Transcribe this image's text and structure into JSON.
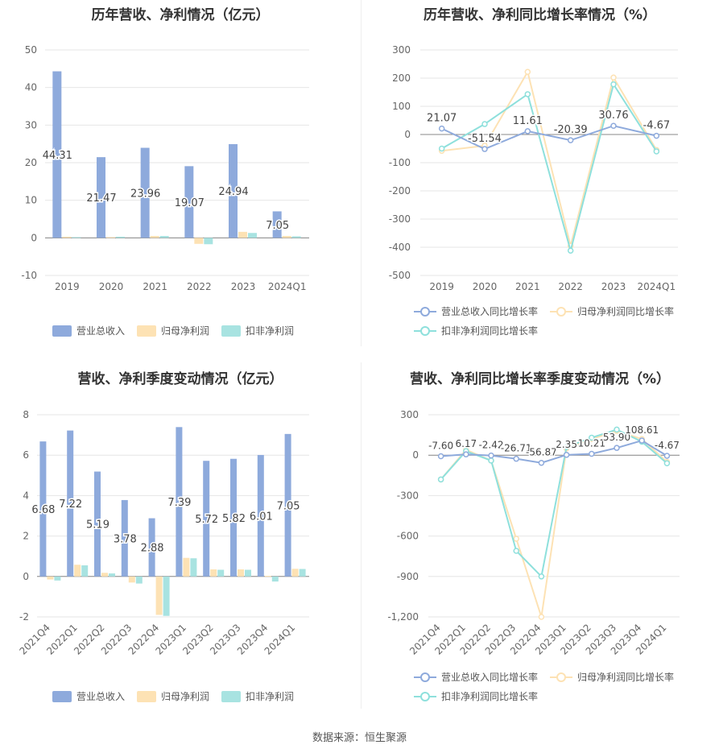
{
  "footer": "数据来源：恒生聚源",
  "colors": {
    "revenue": "#8eaadc",
    "netprofit": "#fde2b4",
    "deducted": "#a8e3e1",
    "revenue_line": "#8eaadc",
    "netprofit_line": "#fde2b4",
    "deducted_line": "#8ee0dc"
  },
  "chart_data": [
    {
      "type": "bar",
      "title": "历年营收、净利情况（亿元）",
      "categories": [
        "2019",
        "2020",
        "2021",
        "2022",
        "2023",
        "2024Q1"
      ],
      "ylim": [
        -10,
        50
      ],
      "yticks": [
        -10,
        0,
        10,
        20,
        30,
        40,
        50
      ],
      "series": [
        {
          "name": "营业总收入",
          "values": [
            44.31,
            21.47,
            23.96,
            19.07,
            24.94,
            7.05
          ],
          "labels": [
            "44.31",
            "21.47",
            "23.96",
            "19.07",
            "24.94",
            "7.05"
          ]
        },
        {
          "name": "归母净利润",
          "values": [
            0.3,
            0.2,
            0.5,
            -1.6,
            1.6,
            0.5
          ]
        },
        {
          "name": "扣非净利润",
          "values": [
            0.2,
            0.3,
            0.5,
            -1.7,
            1.3,
            0.4
          ]
        }
      ],
      "legend": "bottom"
    },
    {
      "type": "line",
      "title": "历年营收、净利同比增长率情况（%）",
      "categories": [
        "2019",
        "2020",
        "2021",
        "2022",
        "2023",
        "2024Q1"
      ],
      "ylim": [
        -500,
        300
      ],
      "yticks": [
        -500,
        -400,
        -300,
        -200,
        -100,
        0,
        100,
        200,
        300
      ],
      "series": [
        {
          "name": "营业总收入同比增长率",
          "values": [
            21.07,
            -51.54,
            11.61,
            -20.39,
            30.76,
            -4.67
          ],
          "labels": [
            "21.07",
            "-51.54",
            "11.61",
            "-20.39",
            "30.76",
            "-4.67"
          ]
        },
        {
          "name": "归母净利润同比增长率",
          "values": [
            -58,
            -40,
            222,
            -395,
            202,
            -55
          ]
        },
        {
          "name": "扣非净利润同比增长率",
          "values": [
            -50,
            37,
            143,
            -412,
            178,
            -60
          ]
        }
      ],
      "legend": "bottom"
    },
    {
      "type": "bar",
      "title": "营收、净利季度变动情况（亿元）",
      "categories": [
        "2021Q4",
        "2022Q1",
        "2022Q2",
        "2022Q3",
        "2022Q4",
        "2023Q1",
        "2023Q2",
        "2023Q3",
        "2023Q4",
        "2024Q1"
      ],
      "ylim": [
        -2,
        8
      ],
      "yticks": [
        -2,
        0,
        2,
        4,
        6,
        8
      ],
      "series": [
        {
          "name": "营业总收入",
          "values": [
            6.68,
            7.22,
            5.19,
            3.78,
            2.88,
            7.39,
            5.72,
            5.82,
            6.01,
            7.05
          ],
          "labels": [
            "6.68",
            "7.22",
            "5.19",
            "3.78",
            "2.88",
            "7.39",
            "5.72",
            "5.82",
            "6.01",
            "7.05"
          ]
        },
        {
          "name": "归母净利润",
          "values": [
            -0.15,
            0.58,
            0.18,
            -0.3,
            -1.9,
            0.92,
            0.35,
            0.35,
            0.03,
            0.38
          ]
        },
        {
          "name": "扣非净利润",
          "values": [
            -0.2,
            0.55,
            0.15,
            -0.35,
            -1.95,
            0.9,
            0.33,
            0.33,
            -0.25,
            0.37
          ]
        }
      ],
      "legend": "bottom"
    },
    {
      "type": "line",
      "title": "营收、净利同比增长率季度变动情况（%）",
      "categories": [
        "2021Q4",
        "2022Q1",
        "2022Q2",
        "2022Q3",
        "2022Q4",
        "2023Q1",
        "2023Q2",
        "2023Q3",
        "2023Q4",
        "2024Q1"
      ],
      "ylim": [
        -1200,
        300
      ],
      "yticks": [
        -1200,
        -900,
        -600,
        -300,
        0,
        300
      ],
      "ytick_labels": [
        "-1,200",
        "-900",
        "-600",
        "-300",
        "0",
        "300"
      ],
      "series": [
        {
          "name": "营业总收入同比增长率",
          "values": [
            -7.6,
            6.17,
            -2.42,
            -26.71,
            -56.87,
            2.35,
            10.21,
            53.9,
            108.61,
            -4.67
          ],
          "labels": [
            "-7.60",
            "6.17",
            "-2.42",
            "-26.71",
            "-56.87",
            "2.35",
            "10.21",
            "53.90",
            "108.61",
            "-4.67"
          ]
        },
        {
          "name": "归母净利润同比增长率",
          "values": [
            -180,
            40,
            -40,
            -620,
            -1200,
            50,
            120,
            180,
            120,
            -50
          ]
        },
        {
          "name": "扣非净利润同比增长率",
          "values": [
            -180,
            30,
            -40,
            -710,
            -900,
            60,
            130,
            190,
            100,
            -60
          ]
        }
      ],
      "legend": "bottom"
    }
  ]
}
